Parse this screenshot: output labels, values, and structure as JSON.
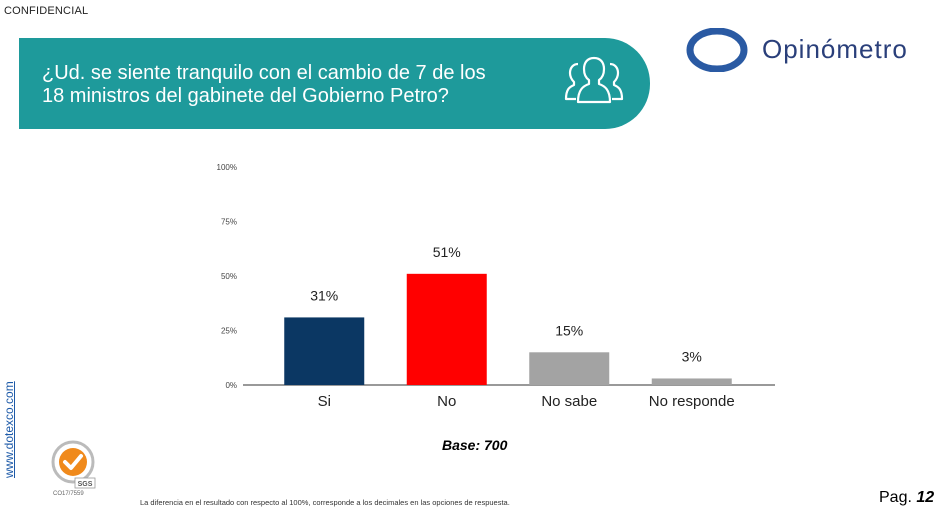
{
  "header": {
    "confidential": "CONFIDENCIAL",
    "question": "¿Ud. se siente tranquilo con el cambio de 7 de los 18 ministros del gabinete del Gobierno Petro?",
    "icon": "people-group-icon"
  },
  "brand": {
    "name": "Opinómetro",
    "ring_color": "#2a5aa3",
    "text_color": "#2a3f7a"
  },
  "colors": {
    "banner": "#1e9a9b"
  },
  "chart_data": {
    "type": "bar",
    "categories": [
      "Si",
      "No",
      "No sabe",
      "No responde"
    ],
    "values": [
      31,
      51,
      15,
      3
    ],
    "value_labels": [
      "31%",
      "51%",
      "15%",
      "3%"
    ],
    "colors": [
      "#0b3763",
      "#ff0000",
      "#a3a3a3",
      "#a3a3a3"
    ],
    "y_ticks": [
      "0%",
      "25%",
      "50%",
      "75%",
      "100%"
    ],
    "ylim": [
      0,
      100
    ],
    "grid": false
  },
  "base_label": "Base: 700",
  "footer": {
    "website": "www.dotexco.com",
    "cert_code": "CO17/7559",
    "note": "La diferencia en el resultado con respecto al 100%, corresponde a los decimales en las opciones de respuesta.",
    "page_prefix": "Pag.",
    "page_number": "12"
  }
}
